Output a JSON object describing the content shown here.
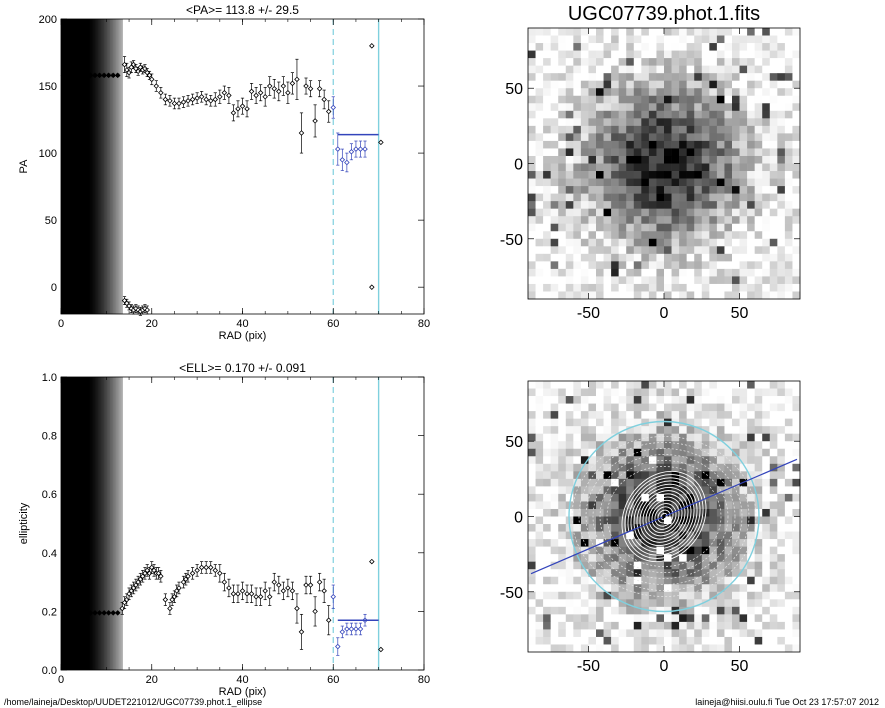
{
  "footer": {
    "left": "/home/laineja/Desktop/UUDET221012/UGC07739.phot.1_ellipse",
    "right": "laineja@hiisi.oulu.fi  Tue Oct 23 17:57:07 2012"
  },
  "colors": {
    "fit_line": "#3344bb",
    "range_line": "#7fd0de",
    "data": "#000000"
  },
  "chart_data": [
    {
      "type": "scatter",
      "title": "<PA>= 113.8 +/-  29.5",
      "xlabel": "RAD (pix)",
      "ylabel": "PA",
      "xlim": [
        0,
        80
      ],
      "ylim": [
        -20,
        200
      ],
      "xticks": [
        0,
        20,
        40,
        60,
        80
      ],
      "yticks": [
        0,
        50,
        100,
        150,
        200
      ],
      "black_band_x": [
        0,
        13.5
      ],
      "dashed_range_x": [
        60,
        70
      ],
      "mean_line": {
        "x": [
          61,
          70
        ],
        "y": 113.8
      },
      "points": [
        {
          "x": 0.5,
          "y": 158,
          "e": 1
        },
        {
          "x": 1.5,
          "y": 158,
          "e": 1
        },
        {
          "x": 2.5,
          "y": 158,
          "e": 1
        },
        {
          "x": 3.5,
          "y": 158,
          "e": 1
        },
        {
          "x": 4.5,
          "y": 158,
          "e": 1
        },
        {
          "x": 5.5,
          "y": 158,
          "e": 1
        },
        {
          "x": 6.5,
          "y": 158,
          "e": 1
        },
        {
          "x": 7.5,
          "y": 158,
          "e": 1
        },
        {
          "x": 8.5,
          "y": 158,
          "e": 1
        },
        {
          "x": 9.5,
          "y": 158,
          "e": 1
        },
        {
          "x": 10.5,
          "y": 158,
          "e": 1
        },
        {
          "x": 11.5,
          "y": 158,
          "e": 1
        },
        {
          "x": 12.5,
          "y": 158,
          "e": 1
        },
        {
          "x": 14.0,
          "y": 166,
          "e": 6
        },
        {
          "x": 14.5,
          "y": 162,
          "e": 5
        },
        {
          "x": 15.0,
          "y": 160,
          "e": 4
        },
        {
          "x": 15.5,
          "y": 164,
          "e": 4
        },
        {
          "x": 16.0,
          "y": 166,
          "e": 3
        },
        {
          "x": 16.5,
          "y": 163,
          "e": 3
        },
        {
          "x": 17.0,
          "y": 161,
          "e": 3
        },
        {
          "x": 17.5,
          "y": 164,
          "e": 3
        },
        {
          "x": 18.0,
          "y": 162,
          "e": 3
        },
        {
          "x": 18.5,
          "y": 163,
          "e": 3
        },
        {
          "x": 19.0,
          "y": 160,
          "e": 3
        },
        {
          "x": 19.5,
          "y": 158,
          "e": 3
        },
        {
          "x": 20.0,
          "y": 155,
          "e": 4
        },
        {
          "x": 21.0,
          "y": 150,
          "e": 4
        },
        {
          "x": 22.0,
          "y": 145,
          "e": 4
        },
        {
          "x": 23.0,
          "y": 140,
          "e": 4
        },
        {
          "x": 24.0,
          "y": 139,
          "e": 4
        },
        {
          "x": 25.0,
          "y": 137,
          "e": 4
        },
        {
          "x": 26.0,
          "y": 137,
          "e": 4
        },
        {
          "x": 27.0,
          "y": 138,
          "e": 4
        },
        {
          "x": 28.0,
          "y": 139,
          "e": 4
        },
        {
          "x": 29.0,
          "y": 140,
          "e": 4
        },
        {
          "x": 30.0,
          "y": 141,
          "e": 4
        },
        {
          "x": 31.0,
          "y": 142,
          "e": 4
        },
        {
          "x": 32.0,
          "y": 140,
          "e": 4
        },
        {
          "x": 33.0,
          "y": 139,
          "e": 4
        },
        {
          "x": 34.0,
          "y": 140,
          "e": 5
        },
        {
          "x": 35.0,
          "y": 142,
          "e": 5
        },
        {
          "x": 36.0,
          "y": 145,
          "e": 5
        },
        {
          "x": 37.0,
          "y": 143,
          "e": 6
        },
        {
          "x": 38.0,
          "y": 130,
          "e": 6
        },
        {
          "x": 39.0,
          "y": 133,
          "e": 6
        },
        {
          "x": 40.0,
          "y": 135,
          "e": 6
        },
        {
          "x": 41.0,
          "y": 133,
          "e": 6
        },
        {
          "x": 42.0,
          "y": 146,
          "e": 6
        },
        {
          "x": 43.0,
          "y": 143,
          "e": 6
        },
        {
          "x": 44.0,
          "y": 145,
          "e": 6
        },
        {
          "x": 45.0,
          "y": 142,
          "e": 7
        },
        {
          "x": 46.0,
          "y": 150,
          "e": 7
        },
        {
          "x": 47.0,
          "y": 148,
          "e": 7
        },
        {
          "x": 48.0,
          "y": 146,
          "e": 7
        },
        {
          "x": 49.0,
          "y": 150,
          "e": 7
        },
        {
          "x": 50.0,
          "y": 145,
          "e": 8
        },
        {
          "x": 51.0,
          "y": 152,
          "e": 8
        },
        {
          "x": 52.0,
          "y": 155,
          "e": 15
        },
        {
          "x": 53.0,
          "y": 115,
          "e": 15
        },
        {
          "x": 54.0,
          "y": 150,
          "e": 6
        },
        {
          "x": 55.0,
          "y": 148,
          "e": 6
        },
        {
          "x": 56.0,
          "y": 124,
          "e": 12
        },
        {
          "x": 57.0,
          "y": 148,
          "e": 6
        },
        {
          "x": 58.0,
          "y": 140,
          "e": 7
        },
        {
          "x": 59.0,
          "y": 131,
          "e": 8
        },
        {
          "x": 60.0,
          "y": 134,
          "e": 8
        },
        {
          "x": 61.0,
          "y": 103,
          "e": 12
        },
        {
          "x": 62.0,
          "y": 95,
          "e": 8
        },
        {
          "x": 63.0,
          "y": 93,
          "e": 7
        },
        {
          "x": 64.0,
          "y": 101,
          "e": 6
        },
        {
          "x": 65.0,
          "y": 103,
          "e": 6
        },
        {
          "x": 66.0,
          "y": 103,
          "e": 6
        },
        {
          "x": 67.0,
          "y": 103,
          "e": 6
        },
        {
          "x": 68.5,
          "y": 180,
          "e": 0
        },
        {
          "x": 68.5,
          "y": 0,
          "e": 0
        },
        {
          "x": 70.5,
          "y": 108,
          "e": 0
        },
        {
          "x": 14.0,
          "y": -10,
          "e": 3
        },
        {
          "x": 14.5,
          "y": -12,
          "e": 3
        },
        {
          "x": 15.0,
          "y": -14,
          "e": 3
        },
        {
          "x": 15.5,
          "y": -16,
          "e": 3
        },
        {
          "x": 16.0,
          "y": -17,
          "e": 3
        },
        {
          "x": 16.5,
          "y": -16,
          "e": 3
        },
        {
          "x": 17.0,
          "y": -17,
          "e": 3
        },
        {
          "x": 17.5,
          "y": -18,
          "e": 3
        },
        {
          "x": 18.0,
          "y": -17,
          "e": 3
        },
        {
          "x": 18.5,
          "y": -16,
          "e": 3
        },
        {
          "x": 19.0,
          "y": -17,
          "e": 3
        }
      ]
    },
    {
      "type": "scatter",
      "title": "<ELL>= 0.170 +/-  0.091",
      "xlabel": "RAD (pix)",
      "ylabel": "ellipticity",
      "xlim": [
        0,
        80
      ],
      "ylim": [
        0.0,
        1.0
      ],
      "xticks": [
        0,
        20,
        40,
        60,
        80
      ],
      "yticks": [
        0.0,
        0.2,
        0.4,
        0.6,
        0.8,
        1.0
      ],
      "black_band_x": [
        0,
        13.5
      ],
      "dashed_range_x": [
        60,
        70
      ],
      "mean_line": {
        "x": [
          61,
          70
        ],
        "y": 0.17
      },
      "points": [
        {
          "x": 0.5,
          "y": 0.195,
          "e": 0.003
        },
        {
          "x": 1.5,
          "y": 0.195,
          "e": 0.003
        },
        {
          "x": 2.5,
          "y": 0.195,
          "e": 0.003
        },
        {
          "x": 3.5,
          "y": 0.195,
          "e": 0.003
        },
        {
          "x": 4.5,
          "y": 0.195,
          "e": 0.003
        },
        {
          "x": 5.5,
          "y": 0.195,
          "e": 0.003
        },
        {
          "x": 6.5,
          "y": 0.195,
          "e": 0.003
        },
        {
          "x": 7.5,
          "y": 0.195,
          "e": 0.003
        },
        {
          "x": 8.5,
          "y": 0.195,
          "e": 0.003
        },
        {
          "x": 9.5,
          "y": 0.195,
          "e": 0.003
        },
        {
          "x": 10.5,
          "y": 0.195,
          "e": 0.003
        },
        {
          "x": 11.5,
          "y": 0.195,
          "e": 0.003
        },
        {
          "x": 12.5,
          "y": 0.195,
          "e": 0.003
        },
        {
          "x": 13.5,
          "y": 0.21,
          "e": 0.02
        },
        {
          "x": 14.0,
          "y": 0.23,
          "e": 0.02
        },
        {
          "x": 14.5,
          "y": 0.24,
          "e": 0.02
        },
        {
          "x": 15.0,
          "y": 0.26,
          "e": 0.02
        },
        {
          "x": 15.5,
          "y": 0.27,
          "e": 0.02
        },
        {
          "x": 16.0,
          "y": 0.28,
          "e": 0.02
        },
        {
          "x": 16.5,
          "y": 0.29,
          "e": 0.02
        },
        {
          "x": 17.0,
          "y": 0.3,
          "e": 0.02
        },
        {
          "x": 17.5,
          "y": 0.31,
          "e": 0.02
        },
        {
          "x": 18.0,
          "y": 0.32,
          "e": 0.02
        },
        {
          "x": 18.5,
          "y": 0.33,
          "e": 0.02
        },
        {
          "x": 19.0,
          "y": 0.34,
          "e": 0.02
        },
        {
          "x": 19.5,
          "y": 0.33,
          "e": 0.02
        },
        {
          "x": 20.0,
          "y": 0.35,
          "e": 0.02
        },
        {
          "x": 20.5,
          "y": 0.34,
          "e": 0.02
        },
        {
          "x": 21.0,
          "y": 0.33,
          "e": 0.02
        },
        {
          "x": 21.5,
          "y": 0.33,
          "e": 0.02
        },
        {
          "x": 22.0,
          "y": 0.32,
          "e": 0.02
        },
        {
          "x": 23.0,
          "y": 0.24,
          "e": 0.02
        },
        {
          "x": 24.0,
          "y": 0.21,
          "e": 0.02
        },
        {
          "x": 24.5,
          "y": 0.24,
          "e": 0.02
        },
        {
          "x": 25.0,
          "y": 0.25,
          "e": 0.02
        },
        {
          "x": 25.5,
          "y": 0.27,
          "e": 0.02
        },
        {
          "x": 26.0,
          "y": 0.28,
          "e": 0.02
        },
        {
          "x": 27.0,
          "y": 0.3,
          "e": 0.02
        },
        {
          "x": 27.5,
          "y": 0.31,
          "e": 0.02
        },
        {
          "x": 28.0,
          "y": 0.32,
          "e": 0.02
        },
        {
          "x": 29.0,
          "y": 0.33,
          "e": 0.02
        },
        {
          "x": 30.0,
          "y": 0.34,
          "e": 0.02
        },
        {
          "x": 31.0,
          "y": 0.35,
          "e": 0.02
        },
        {
          "x": 32.0,
          "y": 0.35,
          "e": 0.02
        },
        {
          "x": 33.0,
          "y": 0.35,
          "e": 0.02
        },
        {
          "x": 34.0,
          "y": 0.34,
          "e": 0.02
        },
        {
          "x": 35.0,
          "y": 0.33,
          "e": 0.03
        },
        {
          "x": 36.0,
          "y": 0.3,
          "e": 0.03
        },
        {
          "x": 37.0,
          "y": 0.28,
          "e": 0.03
        },
        {
          "x": 38.0,
          "y": 0.26,
          "e": 0.03
        },
        {
          "x": 39.0,
          "y": 0.26,
          "e": 0.03
        },
        {
          "x": 40.0,
          "y": 0.27,
          "e": 0.03
        },
        {
          "x": 41.0,
          "y": 0.26,
          "e": 0.03
        },
        {
          "x": 42.0,
          "y": 0.26,
          "e": 0.03
        },
        {
          "x": 43.0,
          "y": 0.25,
          "e": 0.03
        },
        {
          "x": 44.0,
          "y": 0.25,
          "e": 0.03
        },
        {
          "x": 45.0,
          "y": 0.27,
          "e": 0.03
        },
        {
          "x": 46.0,
          "y": 0.25,
          "e": 0.03
        },
        {
          "x": 47.0,
          "y": 0.3,
          "e": 0.03
        },
        {
          "x": 48.0,
          "y": 0.29,
          "e": 0.03
        },
        {
          "x": 49.0,
          "y": 0.27,
          "e": 0.03
        },
        {
          "x": 50.0,
          "y": 0.28,
          "e": 0.03
        },
        {
          "x": 51.0,
          "y": 0.27,
          "e": 0.03
        },
        {
          "x": 52.0,
          "y": 0.21,
          "e": 0.05
        },
        {
          "x": 53.0,
          "y": 0.13,
          "e": 0.06
        },
        {
          "x": 54.0,
          "y": 0.29,
          "e": 0.03
        },
        {
          "x": 55.0,
          "y": 0.29,
          "e": 0.03
        },
        {
          "x": 56.0,
          "y": 0.2,
          "e": 0.05
        },
        {
          "x": 57.0,
          "y": 0.3,
          "e": 0.03
        },
        {
          "x": 58.0,
          "y": 0.27,
          "e": 0.04
        },
        {
          "x": 59.0,
          "y": 0.17,
          "e": 0.05
        },
        {
          "x": 60.0,
          "y": 0.25,
          "e": 0.04
        },
        {
          "x": 61.0,
          "y": 0.08,
          "e": 0.03
        },
        {
          "x": 62.0,
          "y": 0.13,
          "e": 0.02
        },
        {
          "x": 63.0,
          "y": 0.14,
          "e": 0.02
        },
        {
          "x": 64.0,
          "y": 0.14,
          "e": 0.02
        },
        {
          "x": 65.0,
          "y": 0.14,
          "e": 0.02
        },
        {
          "x": 66.0,
          "y": 0.14,
          "e": 0.02
        },
        {
          "x": 67.0,
          "y": 0.17,
          "e": 0.02
        },
        {
          "x": 68.5,
          "y": 0.37,
          "e": 0
        },
        {
          "x": 70.5,
          "y": 0.07,
          "e": 0
        }
      ]
    },
    {
      "type": "heatmap",
      "title": "UGC07739.phot.1.fits",
      "xlabel": "",
      "ylabel": "",
      "xlim": [
        -90,
        90
      ],
      "ylim": [
        -90,
        90
      ],
      "xticks": [
        -50,
        0,
        50
      ],
      "yticks": [
        -50,
        0,
        50
      ],
      "colormap": "grayscale, dark = bright",
      "overlays": []
    },
    {
      "type": "heatmap",
      "title": "",
      "xlabel": "",
      "ylabel": "",
      "xlim": [
        -90,
        90
      ],
      "ylim": [
        -90,
        90
      ],
      "xticks": [
        -50,
        0,
        50
      ],
      "yticks": [
        -50,
        0,
        50
      ],
      "colormap": "grayscale, dark = bright",
      "overlays": [
        "elliptical isophote contours",
        "cyan ellipse at fit radius",
        "blue position-angle line"
      ]
    }
  ]
}
